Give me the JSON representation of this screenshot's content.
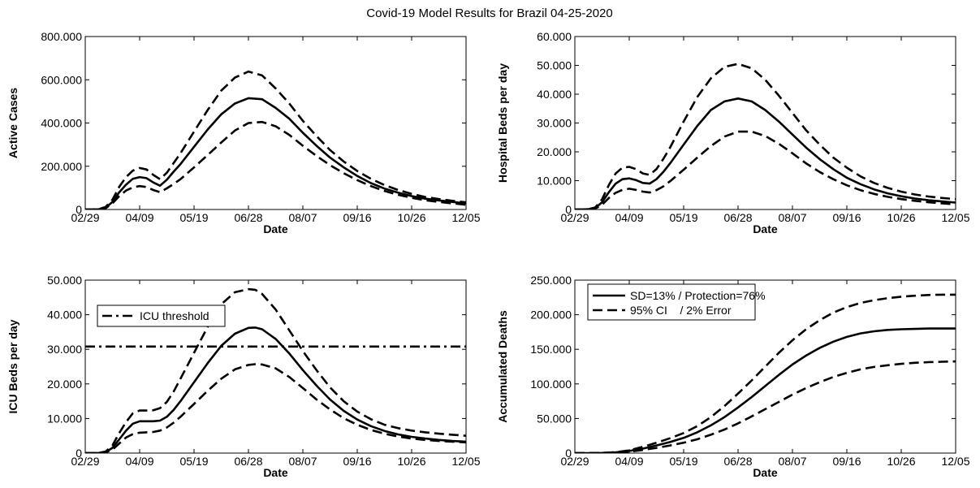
{
  "figure_title": "Covid-19 Model Results for Brazil 04-25-2020",
  "chart_data": [
    {
      "type": "line",
      "ylabel": "Active Cases",
      "xlabel": "Date",
      "x_ticks": [
        "02/29",
        "04/09",
        "05/19",
        "06/28",
        "08/07",
        "09/16",
        "10/26",
        "12/05"
      ],
      "xlim": [
        0,
        280
      ],
      "ylim": [
        0,
        800000
      ],
      "y_ticks": [
        0,
        200000,
        400000,
        600000,
        800000
      ],
      "y_tick_labels": [
        "0",
        "200.000",
        "400.000",
        "600.000",
        "800.000"
      ],
      "series": [
        {
          "style": "solid",
          "x": [
            0,
            5,
            10,
            15,
            20,
            25,
            30,
            35,
            40,
            45,
            50,
            55,
            60,
            65,
            70,
            80,
            90,
            100,
            110,
            120,
            130,
            140,
            150,
            160,
            170,
            180,
            190,
            200,
            210,
            220,
            230,
            240,
            250,
            260,
            270,
            280
          ],
          "y": [
            0,
            0,
            1000,
            8000,
            35000,
            80000,
            115000,
            142000,
            150000,
            145000,
            125000,
            110000,
            138000,
            175000,
            210000,
            290000,
            370000,
            440000,
            490000,
            515000,
            510000,
            470000,
            420000,
            355000,
            295000,
            240000,
            195000,
            155000,
            122000,
            97000,
            78000,
            62000,
            50000,
            42000,
            35000,
            28000
          ]
        },
        {
          "style": "dashed",
          "x": [
            0,
            5,
            10,
            15,
            20,
            25,
            30,
            35,
            40,
            45,
            50,
            55,
            60,
            65,
            70,
            80,
            90,
            100,
            110,
            120,
            130,
            140,
            150,
            160,
            170,
            180,
            190,
            200,
            210,
            220,
            230,
            240,
            250,
            260,
            270,
            280
          ],
          "y": [
            0,
            0,
            1500,
            12000,
            45000,
            105000,
            150000,
            180000,
            192000,
            185000,
            160000,
            140000,
            170000,
            215000,
            260000,
            360000,
            460000,
            550000,
            610000,
            638000,
            620000,
            560000,
            490000,
            410000,
            340000,
            275000,
            222000,
            178000,
            142000,
            113000,
            90000,
            72000,
            58000,
            48000,
            40000,
            33000
          ]
        },
        {
          "style": "dashed",
          "x": [
            0,
            5,
            10,
            15,
            20,
            25,
            30,
            35,
            40,
            45,
            50,
            55,
            60,
            65,
            70,
            80,
            90,
            100,
            110,
            120,
            130,
            140,
            150,
            160,
            170,
            180,
            190,
            200,
            210,
            220,
            230,
            240,
            250,
            260,
            270,
            280
          ],
          "y": [
            0,
            0,
            800,
            6000,
            28000,
            62000,
            88000,
            102000,
            108000,
            104000,
            90000,
            80000,
            98000,
            118000,
            140000,
            195000,
            252000,
            310000,
            365000,
            400000,
            405000,
            385000,
            345000,
            295000,
            248000,
            205000,
            168000,
            136000,
            108000,
            86000,
            68000,
            54000,
            43000,
            35000,
            28000,
            22000
          ]
        }
      ]
    },
    {
      "type": "line",
      "ylabel": "Hospital Beds per day",
      "xlabel": "Date",
      "x_ticks": [
        "02/29",
        "04/09",
        "05/19",
        "06/28",
        "08/07",
        "09/16",
        "10/26",
        "12/05"
      ],
      "xlim": [
        0,
        280
      ],
      "ylim": [
        0,
        60000
      ],
      "y_ticks": [
        0,
        10000,
        20000,
        30000,
        40000,
        50000,
        60000
      ],
      "y_tick_labels": [
        "0",
        "10.000",
        "20.000",
        "30.000",
        "40.000",
        "50.000",
        "60.000"
      ],
      "series": [
        {
          "style": "solid",
          "x": [
            0,
            5,
            10,
            15,
            20,
            25,
            30,
            35,
            40,
            45,
            50,
            55,
            60,
            65,
            70,
            80,
            90,
            100,
            110,
            120,
            130,
            140,
            150,
            160,
            170,
            180,
            190,
            200,
            210,
            220,
            230,
            240,
            250,
            260,
            270,
            280
          ],
          "y": [
            0,
            0,
            100,
            500,
            2500,
            6000,
            9000,
            10500,
            10800,
            10200,
            9200,
            9000,
            10500,
            13000,
            16000,
            22500,
            29000,
            34500,
            37500,
            38500,
            37500,
            34500,
            30500,
            26000,
            21500,
            17500,
            14000,
            11000,
            8800,
            7000,
            5600,
            4600,
            3800,
            3200,
            2800,
            2400
          ]
        },
        {
          "style": "dashed",
          "x": [
            0,
            5,
            10,
            15,
            20,
            25,
            30,
            35,
            40,
            45,
            50,
            55,
            60,
            65,
            70,
            80,
            90,
            100,
            110,
            120,
            130,
            140,
            150,
            160,
            170,
            180,
            190,
            200,
            210,
            220,
            230,
            240,
            250,
            260,
            270,
            280
          ],
          "y": [
            0,
            0,
            150,
            700,
            3500,
            8500,
            12500,
            14500,
            14800,
            14000,
            12500,
            12000,
            14000,
            17500,
            21500,
            30500,
            39000,
            45500,
            49500,
            50500,
            49000,
            45000,
            39500,
            33500,
            27500,
            22500,
            18000,
            14500,
            11500,
            9200,
            7500,
            6200,
            5200,
            4500,
            4000,
            3600
          ]
        },
        {
          "style": "dashed",
          "x": [
            0,
            5,
            10,
            15,
            20,
            25,
            30,
            35,
            40,
            45,
            50,
            55,
            60,
            65,
            70,
            80,
            90,
            100,
            110,
            120,
            130,
            140,
            150,
            160,
            170,
            180,
            190,
            200,
            210,
            220,
            230,
            240,
            250,
            260,
            270,
            280
          ],
          "y": [
            0,
            0,
            80,
            350,
            1600,
            4000,
            5800,
            6800,
            7200,
            6800,
            6200,
            5900,
            6700,
            8000,
            9800,
            13800,
            18000,
            22000,
            25300,
            27000,
            27000,
            25500,
            22800,
            19500,
            16000,
            13000,
            10500,
            8400,
            6700,
            5400,
            4400,
            3600,
            3000,
            2500,
            2100,
            1800
          ]
        }
      ]
    },
    {
      "type": "line",
      "ylabel": "ICU Beds per day",
      "xlabel": "Date",
      "x_ticks": [
        "02/29",
        "04/09",
        "05/19",
        "06/28",
        "08/07",
        "09/16",
        "10/26",
        "12/05"
      ],
      "xlim": [
        0,
        280
      ],
      "ylim": [
        0,
        50000
      ],
      "y_ticks": [
        0,
        10000,
        20000,
        30000,
        40000,
        50000
      ],
      "y_tick_labels": [
        "0",
        "10.000",
        "20.000",
        "30.000",
        "40.000",
        "50.000"
      ],
      "threshold": {
        "label": "ICU threshold",
        "value": 30800,
        "style": "dashdot"
      },
      "legend": [
        "ICU threshold"
      ],
      "series": [
        {
          "style": "solid",
          "x": [
            0,
            5,
            10,
            15,
            20,
            25,
            30,
            35,
            40,
            45,
            50,
            55,
            60,
            65,
            70,
            80,
            90,
            100,
            110,
            120,
            125,
            130,
            140,
            150,
            160,
            170,
            180,
            190,
            200,
            210,
            220,
            230,
            240,
            250,
            260,
            270,
            280
          ],
          "y": [
            0,
            0,
            50,
            300,
            1500,
            4000,
            6500,
            8500,
            9200,
            9200,
            9200,
            9400,
            10500,
            12500,
            15000,
            20500,
            26000,
            31000,
            34500,
            36200,
            36300,
            35800,
            33000,
            28800,
            24000,
            19500,
            15500,
            12200,
            9700,
            7800,
            6400,
            5400,
            4700,
            4200,
            3800,
            3500,
            3300
          ]
        },
        {
          "style": "dashed",
          "x": [
            0,
            5,
            10,
            15,
            20,
            25,
            30,
            35,
            40,
            45,
            50,
            55,
            60,
            65,
            70,
            80,
            90,
            100,
            110,
            120,
            125,
            130,
            140,
            150,
            160,
            170,
            180,
            190,
            200,
            210,
            220,
            230,
            240,
            250,
            260,
            270,
            280
          ],
          "y": [
            0,
            0,
            80,
            450,
            2200,
            5800,
            9000,
            11500,
            12300,
            12300,
            12400,
            13000,
            14800,
            17800,
            21500,
            29000,
            36500,
            43000,
            46500,
            47400,
            47200,
            46000,
            41500,
            35500,
            29500,
            24000,
            19000,
            15000,
            12000,
            9800,
            8200,
            7200,
            6500,
            6000,
            5600,
            5300,
            5000
          ]
        },
        {
          "style": "dashed",
          "x": [
            0,
            5,
            10,
            15,
            20,
            25,
            30,
            35,
            40,
            45,
            50,
            55,
            60,
            65,
            70,
            80,
            90,
            100,
            110,
            120,
            125,
            130,
            140,
            150,
            160,
            170,
            180,
            190,
            200,
            210,
            220,
            230,
            240,
            250,
            260,
            270,
            280
          ],
          "y": [
            0,
            0,
            30,
            200,
            1000,
            2800,
            4500,
            5500,
            5900,
            6000,
            6100,
            6500,
            7400,
            8800,
            10500,
            14200,
            18000,
            21500,
            24200,
            25500,
            25700,
            25600,
            24500,
            22000,
            18800,
            15500,
            12600,
            10100,
            8200,
            6700,
            5600,
            4800,
            4200,
            3800,
            3500,
            3300,
            3100
          ]
        }
      ]
    },
    {
      "type": "line",
      "ylabel": "Accumulated Deaths",
      "xlabel": "Date",
      "x_ticks": [
        "02/29",
        "04/09",
        "05/19",
        "06/28",
        "08/07",
        "09/16",
        "10/26",
        "12/05"
      ],
      "xlim": [
        0,
        280
      ],
      "ylim": [
        0,
        250000
      ],
      "y_ticks": [
        0,
        50000,
        100000,
        150000,
        200000,
        250000
      ],
      "y_tick_labels": [
        "0",
        "50.000",
        "100.000",
        "150.000",
        "200.000",
        "250.000"
      ],
      "legend": [
        "SD=13% / Protection=76%",
        "95% CI    / 2% Error"
      ],
      "series": [
        {
          "name": "SD=13% / Protection=76%",
          "style": "solid",
          "x": [
            0,
            10,
            20,
            30,
            40,
            50,
            60,
            70,
            80,
            90,
            100,
            110,
            120,
            130,
            140,
            150,
            160,
            170,
            180,
            190,
            200,
            210,
            220,
            230,
            240,
            250,
            260,
            270,
            280
          ],
          "y": [
            0,
            0,
            200,
            1000,
            3000,
            6500,
            11000,
            16000,
            22000,
            30000,
            40000,
            52000,
            66000,
            81000,
            97000,
            113000,
            128000,
            141000,
            152000,
            161000,
            168000,
            173000,
            176000,
            178000,
            179000,
            179500,
            180000,
            180000,
            180000
          ]
        },
        {
          "name": "95% CI    / 2% Error",
          "style": "dashed",
          "x": [
            0,
            10,
            20,
            30,
            40,
            50,
            60,
            70,
            80,
            90,
            100,
            110,
            120,
            130,
            140,
            150,
            160,
            170,
            180,
            190,
            200,
            210,
            220,
            230,
            240,
            250,
            260,
            270,
            280
          ],
          "y": [
            0,
            0,
            250,
            1300,
            4000,
            9000,
            15000,
            21500,
            29000,
            39000,
            52000,
            68000,
            86000,
            105000,
            125000,
            145000,
            163000,
            179000,
            192000,
            203000,
            211000,
            217000,
            221000,
            224000,
            226000,
            227500,
            228500,
            229000,
            229000
          ]
        },
        {
          "style": "dashed",
          "x": [
            0,
            10,
            20,
            30,
            40,
            50,
            60,
            70,
            80,
            90,
            100,
            110,
            120,
            130,
            140,
            150,
            160,
            170,
            180,
            190,
            200,
            210,
            220,
            230,
            240,
            250,
            260,
            270,
            280
          ],
          "y": [
            0,
            0,
            150,
            700,
            2000,
            4500,
            7500,
            11000,
            15000,
            20000,
            26500,
            34000,
            43000,
            53000,
            63500,
            74000,
            84500,
            94000,
            102500,
            110000,
            116000,
            121000,
            124500,
            127000,
            129000,
            130500,
            131500,
            132000,
            132500
          ]
        }
      ]
    }
  ]
}
